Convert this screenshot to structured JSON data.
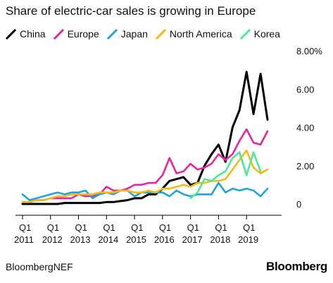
{
  "title": "Share of electric-car sales is growing in Europe",
  "source": "BloombergNEF",
  "brand": "Bloomberg",
  "chart_data": {
    "type": "line",
    "title": "Share of electric-car sales is growing in Europe",
    "xlabel": "",
    "ylabel": "",
    "x": [
      "Q1 2011",
      "Q2 2011",
      "Q3 2011",
      "Q4 2011",
      "Q1 2012",
      "Q2 2012",
      "Q3 2012",
      "Q4 2012",
      "Q1 2013",
      "Q2 2013",
      "Q3 2013",
      "Q4 2013",
      "Q1 2014",
      "Q2 2014",
      "Q3 2014",
      "Q4 2014",
      "Q1 2015",
      "Q2 2015",
      "Q3 2015",
      "Q4 2015",
      "Q1 2016",
      "Q2 2016",
      "Q3 2016",
      "Q4 2016",
      "Q1 2017",
      "Q2 2017",
      "Q3 2017",
      "Q4 2017",
      "Q1 2018",
      "Q2 2018",
      "Q3 2018",
      "Q4 2018",
      "Q1 2019",
      "Q2 2019",
      "Q3 2019",
      "Q4 2019"
    ],
    "x_ticks": [
      {
        "q": "Q1",
        "year": "2011"
      },
      {
        "q": "Q1",
        "year": "2012"
      },
      {
        "q": "Q1",
        "year": "2013"
      },
      {
        "q": "Q1",
        "year": "2014"
      },
      {
        "q": "Q1",
        "year": "2015"
      },
      {
        "q": "Q1",
        "year": "2016"
      },
      {
        "q": "Q1",
        "year": "2017"
      },
      {
        "q": "Q1",
        "year": "2018"
      },
      {
        "q": "Q1",
        "year": "2019"
      }
    ],
    "y_ticks": [
      "0",
      "2.00",
      "4.00",
      "6.00",
      "8.00%"
    ],
    "y_tick_values": [
      0,
      2,
      4,
      6,
      8
    ],
    "ylim": [
      0,
      8
    ],
    "grid": false,
    "legend_position": "top-left",
    "series": [
      {
        "name": "China",
        "color": "#000000",
        "values": [
          0.0,
          0.0,
          0.0,
          0.0,
          0.0,
          0.0,
          0.05,
          0.05,
          0.05,
          0.05,
          0.05,
          0.05,
          0.1,
          0.1,
          0.15,
          0.2,
          0.3,
          0.3,
          0.5,
          0.5,
          0.8,
          1.2,
          1.3,
          1.4,
          1.0,
          1.1,
          2.0,
          2.6,
          3.1,
          2.2,
          4.0,
          4.9,
          6.9,
          4.7,
          6.8,
          4.4
        ]
      },
      {
        "name": "Europe",
        "color": "#e8259e",
        "values": [
          0.1,
          0.1,
          0.2,
          0.2,
          0.3,
          0.3,
          0.3,
          0.3,
          0.5,
          0.4,
          0.4,
          0.5,
          0.9,
          0.7,
          0.7,
          0.8,
          1.0,
          1.0,
          1.1,
          1.1,
          1.5,
          2.4,
          1.6,
          1.7,
          2.1,
          1.8,
          1.9,
          2.1,
          2.6,
          2.3,
          2.6,
          3.3,
          3.9,
          3.2,
          3.1,
          3.8
        ]
      },
      {
        "name": "Japan",
        "color": "#20a4e0",
        "values": [
          0.5,
          0.2,
          0.3,
          0.4,
          0.5,
          0.6,
          0.5,
          0.6,
          0.6,
          0.7,
          0.3,
          0.5,
          0.6,
          0.5,
          0.7,
          0.7,
          0.4,
          0.6,
          0.6,
          0.6,
          0.6,
          0.4,
          0.7,
          0.5,
          0.4,
          0.5,
          0.5,
          0.5,
          1.1,
          0.6,
          0.8,
          0.7,
          0.8,
          0.7,
          0.4,
          0.8
        ]
      },
      {
        "name": "North America",
        "color": "#f5bb13",
        "values": [
          0.1,
          0.1,
          0.2,
          0.2,
          0.3,
          0.4,
          0.4,
          0.5,
          0.5,
          0.5,
          0.5,
          0.6,
          0.6,
          0.6,
          0.7,
          0.7,
          0.6,
          0.6,
          0.7,
          0.6,
          0.8,
          0.8,
          0.9,
          1.0,
          0.9,
          1.1,
          1.1,
          1.2,
          1.2,
          1.3,
          1.8,
          2.3,
          2.8,
          1.9,
          1.6,
          1.8
        ]
      },
      {
        "name": "Korea",
        "color": "#4de89b",
        "values": [
          null,
          null,
          null,
          null,
          null,
          null,
          null,
          null,
          null,
          null,
          null,
          null,
          null,
          null,
          null,
          null,
          null,
          null,
          null,
          null,
          null,
          null,
          null,
          null,
          0.3,
          0.6,
          1.3,
          1.2,
          1.5,
          1.7,
          2.4,
          2.7,
          1.5,
          2.7,
          1.7,
          null
        ]
      }
    ]
  }
}
